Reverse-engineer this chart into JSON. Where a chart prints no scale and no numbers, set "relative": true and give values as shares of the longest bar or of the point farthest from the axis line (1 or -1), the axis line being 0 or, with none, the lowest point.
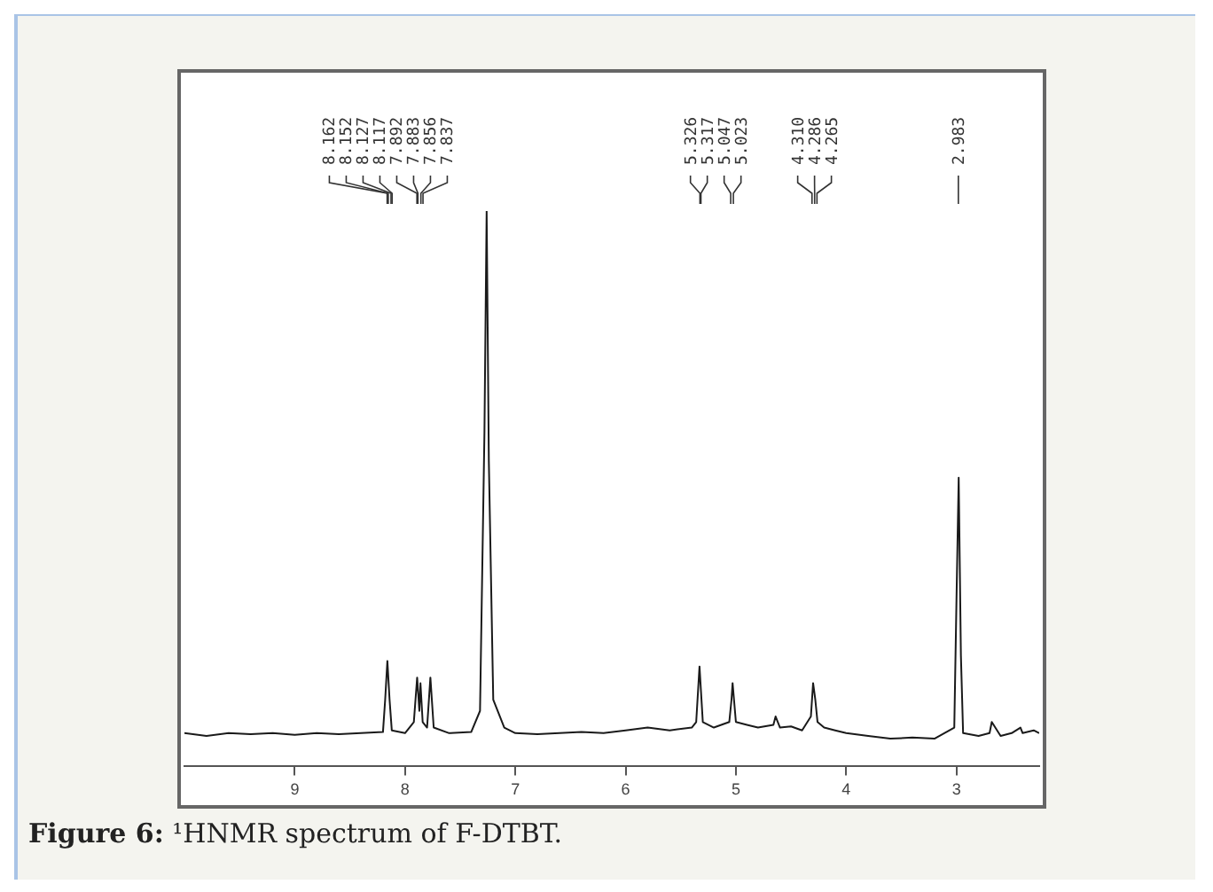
{
  "chart_data": {
    "type": "line",
    "title": "Figure 6: ¹HNMR spectrum of F-DTBT.",
    "relative": true,
    "x": [
      10,
      9.8,
      9.6,
      9.4,
      9.2,
      9.0,
      8.8,
      8.6,
      8.4,
      8.2,
      8.18,
      8.16,
      8.14,
      8.12,
      8.0,
      7.92,
      7.89,
      7.87,
      7.86,
      7.84,
      7.8,
      7.77,
      7.74,
      7.6,
      7.4,
      7.32,
      7.28,
      7.26,
      7.24,
      7.2,
      7.1,
      7.0,
      6.8,
      6.6,
      6.4,
      6.2,
      6.0,
      5.8,
      5.6,
      5.4,
      5.36,
      5.33,
      5.3,
      5.2,
      5.06,
      5.04,
      5.03,
      5.0,
      4.9,
      4.8,
      4.66,
      4.64,
      4.6,
      4.5,
      4.4,
      4.32,
      4.3,
      4.28,
      4.26,
      4.2,
      4.1,
      4.0,
      3.8,
      3.6,
      3.4,
      3.2,
      3.02,
      3.0,
      2.98,
      2.96,
      2.94,
      2.8,
      2.7,
      2.68,
      2.6,
      2.5,
      2.42,
      2.4,
      2.3,
      2.25
    ],
    "series": [
      {
        "color": "#1a1a1a",
        "values": [
          0.06,
          0.055,
          0.06,
          0.058,
          0.06,
          0.057,
          0.06,
          0.058,
          0.06,
          0.062,
          0.12,
          0.19,
          0.12,
          0.065,
          0.06,
          0.08,
          0.16,
          0.1,
          0.15,
          0.08,
          0.07,
          0.16,
          0.07,
          0.06,
          0.062,
          0.1,
          0.6,
          1.0,
          0.55,
          0.12,
          0.07,
          0.06,
          0.058,
          0.06,
          0.062,
          0.06,
          0.065,
          0.07,
          0.065,
          0.07,
          0.08,
          0.18,
          0.08,
          0.07,
          0.08,
          0.12,
          0.15,
          0.08,
          0.075,
          0.07,
          0.075,
          0.09,
          0.07,
          0.072,
          0.065,
          0.09,
          0.15,
          0.12,
          0.08,
          0.07,
          0.065,
          0.06,
          0.055,
          0.05,
          0.052,
          0.05,
          0.07,
          0.3,
          0.52,
          0.2,
          0.06,
          0.055,
          0.06,
          0.08,
          0.055,
          0.06,
          0.07,
          0.06,
          0.065,
          0.06
        ]
      }
    ],
    "xlim": [
      10,
      2.25
    ],
    "xticks": [
      9,
      8,
      7,
      6,
      5,
      4,
      3
    ],
    "grid": false,
    "legend": false,
    "marker": "none",
    "line_style": "solid",
    "annotations": [
      {
        "text": "8.162",
        "x": 8.162
      },
      {
        "text": "8.152",
        "x": 8.152
      },
      {
        "text": "8.127",
        "x": 8.127
      },
      {
        "text": "8.117",
        "x": 8.117
      },
      {
        "text": "7.892",
        "x": 7.892
      },
      {
        "text": "7.883",
        "x": 7.883
      },
      {
        "text": "7.856",
        "x": 7.856
      },
      {
        "text": "7.837",
        "x": 7.837
      },
      {
        "text": "5.326",
        "x": 5.326
      },
      {
        "text": "5.317",
        "x": 5.317
      },
      {
        "text": "5.047",
        "x": 5.047
      },
      {
        "text": "5.023",
        "x": 5.023
      },
      {
        "text": "4.310",
        "x": 4.31
      },
      {
        "text": "4.286",
        "x": 4.286
      },
      {
        "text": "4.265",
        "x": 4.265
      },
      {
        "text": "2.983",
        "x": 2.983
      }
    ]
  }
}
